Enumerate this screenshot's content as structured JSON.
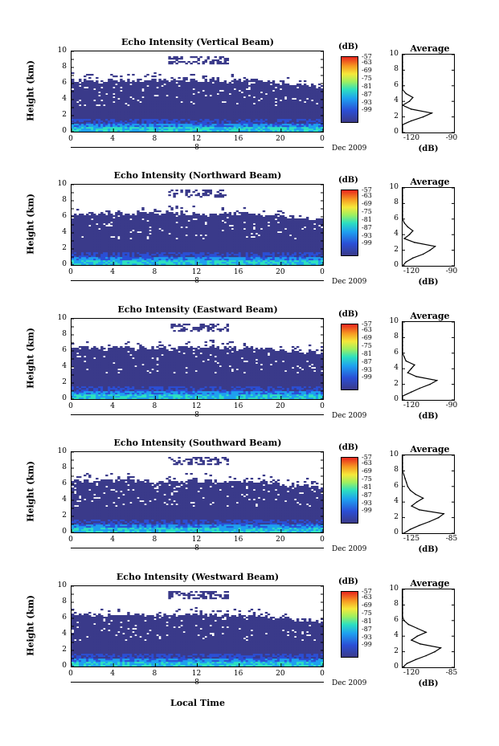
{
  "panels": [
    {
      "title": "Echo Intensity (Vertical Beam)",
      "avg_xticks": [
        "-120",
        "-90"
      ],
      "profile": [
        [
          -128,
          0
        ],
        [
          -124,
          0.5
        ],
        [
          -120,
          1.0
        ],
        [
          -115,
          1.5
        ],
        [
          -108,
          2.0
        ],
        [
          -103,
          2.5
        ],
        [
          -115,
          3.0
        ],
        [
          -120,
          3.5
        ],
        [
          -116,
          4.0
        ],
        [
          -114,
          4.5
        ],
        [
          -118,
          5.0
        ],
        [
          -120,
          5.5
        ],
        [
          -122,
          6.0
        ],
        [
          -123,
          6.5
        ],
        [
          -125,
          7.0
        ],
        [
          -127,
          7.5
        ],
        [
          -126,
          8.0
        ],
        [
          -128,
          8.5
        ],
        [
          -127,
          9.0
        ],
        [
          -128,
          10
        ]
      ]
    },
    {
      "title": "Echo Intensity (Northward Beam)",
      "avg_xticks": [
        "-120",
        "-90"
      ],
      "profile": [
        [
          -122,
          0
        ],
        [
          -118,
          0.5
        ],
        [
          -114,
          1.0
        ],
        [
          -108,
          1.5
        ],
        [
          -104,
          2.0
        ],
        [
          -101,
          2.5
        ],
        [
          -113,
          3.0
        ],
        [
          -119,
          3.5
        ],
        [
          -116,
          4.0
        ],
        [
          -114,
          4.5
        ],
        [
          -117,
          5.0
        ],
        [
          -119,
          5.5
        ],
        [
          -120,
          6.0
        ],
        [
          -122,
          6.5
        ],
        [
          -124,
          7.0
        ],
        [
          -126,
          7.5
        ],
        [
          -125,
          8.0
        ],
        [
          -127,
          8.5
        ],
        [
          -126,
          9.0
        ],
        [
          -127,
          10
        ]
      ]
    },
    {
      "title": "Echo Intensity (Eastward Beam)",
      "avg_xticks": [
        "-120",
        "-90"
      ],
      "profile": [
        [
          -124,
          0
        ],
        [
          -120,
          0.5
        ],
        [
          -115,
          1.0
        ],
        [
          -110,
          1.5
        ],
        [
          -104,
          2.0
        ],
        [
          -100,
          2.5
        ],
        [
          -112,
          3.0
        ],
        [
          -117,
          3.5
        ],
        [
          -115,
          4.0
        ],
        [
          -113,
          4.5
        ],
        [
          -118,
          5.0
        ],
        [
          -119,
          5.5
        ],
        [
          -120,
          6.0
        ],
        [
          -122,
          6.5
        ],
        [
          -123,
          7.0
        ],
        [
          -124,
          7.5
        ],
        [
          -125,
          8.0
        ],
        [
          -126,
          8.5
        ],
        [
          -127,
          9.0
        ],
        [
          -126,
          10
        ]
      ]
    },
    {
      "title": "Echo Intensity (Southward Beam)",
      "avg_xticks": [
        "-125",
        "-85"
      ],
      "profile": [
        [
          -124,
          0
        ],
        [
          -119,
          0.5
        ],
        [
          -112,
          1.0
        ],
        [
          -104,
          1.5
        ],
        [
          -97,
          2.0
        ],
        [
          -93,
          2.5
        ],
        [
          -112,
          3.0
        ],
        [
          -118,
          3.5
        ],
        [
          -114,
          4.0
        ],
        [
          -109,
          4.5
        ],
        [
          -115,
          5.0
        ],
        [
          -119,
          5.5
        ],
        [
          -121,
          6.0
        ],
        [
          -122,
          6.5
        ],
        [
          -123,
          7.0
        ],
        [
          -124,
          7.5
        ],
        [
          -125,
          8.0
        ],
        [
          -126,
          8.5
        ],
        [
          -125,
          9.0
        ],
        [
          -126,
          10
        ]
      ]
    },
    {
      "title": "Echo Intensity (Westward Beam)",
      "avg_xticks": [
        "-120",
        "-85"
      ],
      "profile": [
        [
          -122,
          0
        ],
        [
          -117,
          0.5
        ],
        [
          -111,
          1.0
        ],
        [
          -104,
          1.5
        ],
        [
          -98,
          2.0
        ],
        [
          -94,
          2.5
        ],
        [
          -108,
          3.0
        ],
        [
          -114,
          3.5
        ],
        [
          -110,
          4.0
        ],
        [
          -104,
          4.5
        ],
        [
          -110,
          5.0
        ],
        [
          -116,
          5.5
        ],
        [
          -119,
          6.0
        ],
        [
          -121,
          6.5
        ],
        [
          -122,
          7.0
        ],
        [
          -123,
          7.5
        ],
        [
          -123,
          8.0
        ],
        [
          -124,
          8.5
        ],
        [
          -123,
          9.0
        ],
        [
          -124,
          10
        ]
      ]
    }
  ],
  "y_ticks": [
    "10",
    "8",
    "6",
    "4",
    "2",
    "0"
  ],
  "avg_y_ticks": [
    "10",
    "8",
    "6",
    "4",
    "2",
    "0"
  ],
  "x_ticks": [
    "0",
    "4",
    "8",
    "12",
    "16",
    "20",
    "0"
  ],
  "y_label": "Height (km)",
  "date_day": "8",
  "date_month": "Dec 2009",
  "colorbar_unit": "(dB)",
  "colorbar_ticks": [
    "-57",
    "-63",
    "-69",
    "-75",
    "-81",
    "-87",
    "-93",
    "-99"
  ],
  "avg_title": "Average",
  "avg_unit": "(dB)",
  "x_label": "Local Time",
  "colors": {
    "dark": "#3a3a8a",
    "blue": "#2b4fd6",
    "cyan": "#1ea0f0",
    "teal": "#2ee0c0",
    "line": "#000000"
  },
  "chart_data": [
    {
      "type": "heatmap",
      "title": "Echo Intensity (Vertical Beam)",
      "xlabel": "Local Time",
      "ylabel": "Height (km)",
      "xlim": [
        0,
        24
      ],
      "ylim": [
        0,
        10
      ],
      "colorbar_range_db": [
        -99,
        -57
      ]
    },
    {
      "type": "heatmap",
      "title": "Echo Intensity (Northward Beam)",
      "xlabel": "Local Time",
      "ylabel": "Height (km)",
      "xlim": [
        0,
        24
      ],
      "ylim": [
        0,
        10
      ],
      "colorbar_range_db": [
        -99,
        -57
      ]
    },
    {
      "type": "heatmap",
      "title": "Echo Intensity (Eastward Beam)",
      "xlabel": "Local Time",
      "ylabel": "Height (km)",
      "xlim": [
        0,
        24
      ],
      "ylim": [
        0,
        10
      ],
      "colorbar_range_db": [
        -99,
        -57
      ]
    },
    {
      "type": "heatmap",
      "title": "Echo Intensity (Southward Beam)",
      "xlabel": "Local Time",
      "ylabel": "Height (km)",
      "xlim": [
        0,
        24
      ],
      "ylim": [
        0,
        10
      ],
      "colorbar_range_db": [
        -99,
        -57
      ]
    },
    {
      "type": "heatmap",
      "title": "Echo Intensity (Westward Beam)",
      "xlabel": "Local Time",
      "ylabel": "Height (km)",
      "xlim": [
        0,
        24
      ],
      "ylim": [
        0,
        10
      ],
      "colorbar_range_db": [
        -99,
        -57
      ]
    }
  ]
}
